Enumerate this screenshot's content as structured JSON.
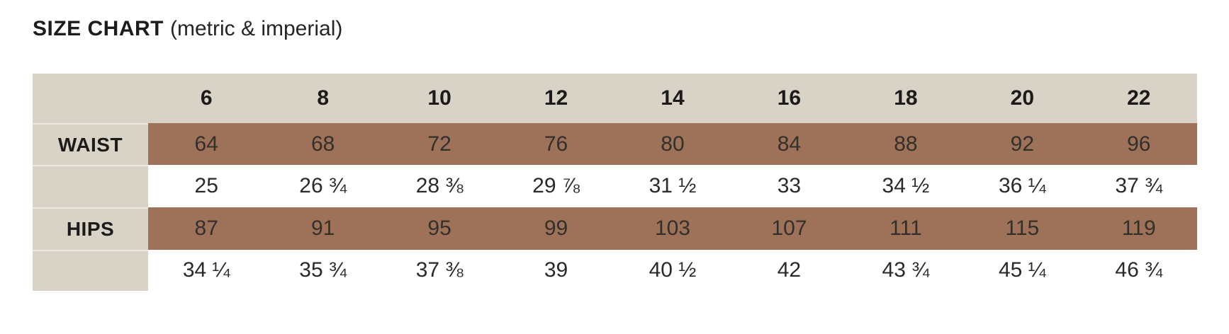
{
  "title": {
    "main": "SIZE CHART",
    "suffix": "(metric & imperial)"
  },
  "colors": {
    "header_beige": "#d9d2c6",
    "metric_brown": "#9e7259",
    "imperial_white": "#ffffff",
    "text_dark": "#1c1b1a",
    "text_value": "#2f2c28"
  },
  "chart_data": {
    "type": "table",
    "title": "SIZE CHART (metric & imperial)",
    "columns": [
      "6",
      "8",
      "10",
      "12",
      "14",
      "16",
      "18",
      "20",
      "22"
    ],
    "rows": [
      {
        "label": "WAIST",
        "band": "metric",
        "values": [
          "64",
          "68",
          "72",
          "76",
          "80",
          "84",
          "88",
          "92",
          "96"
        ]
      },
      {
        "label": "",
        "band": "imperial",
        "values": [
          "25",
          "26 ¾",
          "28 ⅜",
          "29 ⅞",
          "31 ½",
          "33",
          "34 ½",
          "36 ¼",
          "37 ¾"
        ]
      },
      {
        "label": "HIPS",
        "band": "metric",
        "values": [
          "87",
          "91",
          "95",
          "99",
          "103",
          "107",
          "111",
          "115",
          "119"
        ]
      },
      {
        "label": "",
        "band": "imperial",
        "values": [
          "34 ¼",
          "35 ¾",
          "37 ⅜",
          "39",
          "40 ½",
          "42",
          "43 ¾",
          "45 ¼",
          "46 ¾"
        ]
      }
    ]
  }
}
